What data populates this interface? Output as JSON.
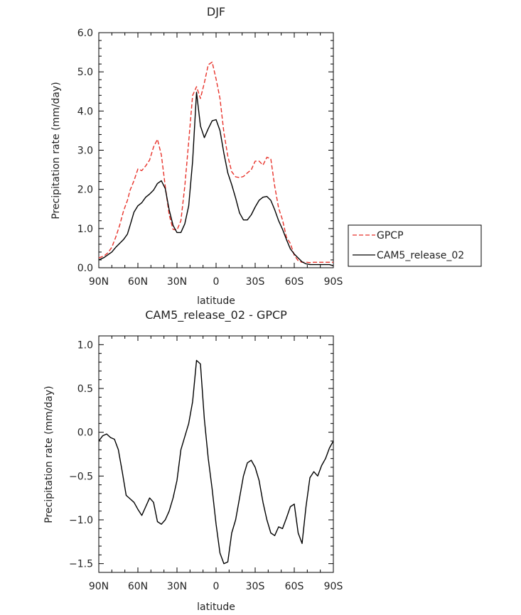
{
  "chart_data": [
    {
      "type": "line",
      "title": "DJF",
      "xlabel": "latitude",
      "ylabel": "Precipitation rate (mm/day)",
      "xlim": [
        90,
        -90
      ],
      "ylim": [
        0.0,
        6.0
      ],
      "xticks": [
        90,
        60,
        30,
        0,
        -30,
        -60,
        -90
      ],
      "xtick_labels": [
        "90N",
        "60N",
        "30N",
        "0",
        "30S",
        "60S",
        "90S"
      ],
      "yticks": [
        0.0,
        1.0,
        2.0,
        3.0,
        4.0,
        5.0,
        6.0
      ],
      "ytick_labels": [
        "0.0",
        "1.0",
        "2.0",
        "3.0",
        "4.0",
        "5.0",
        "6.0"
      ],
      "legend": {
        "placement": "right",
        "entries": [
          "GPCP",
          "CAM5_release_02"
        ]
      },
      "x": [
        90,
        86,
        83,
        80,
        77,
        74,
        71,
        68,
        66,
        63,
        60,
        57,
        54,
        51,
        48,
        45,
        42,
        39,
        36,
        33,
        30,
        27,
        24,
        21,
        18,
        15,
        12,
        9,
        6,
        3,
        0,
        -3,
        -6,
        -9,
        -12,
        -15,
        -18,
        -21,
        -24,
        -27,
        -30,
        -33,
        -36,
        -39,
        -42,
        -45,
        -48,
        -51,
        -54,
        -57,
        -60,
        -63,
        -66,
        -69,
        -72,
        -75,
        -78,
        -81,
        -84,
        -87,
        -90
      ],
      "series": [
        {
          "name": "GPCP",
          "color": "#e8322a",
          "dash": "dashed",
          "values": [
            0.25,
            0.3,
            0.38,
            0.52,
            0.78,
            1.08,
            1.45,
            1.72,
            1.98,
            2.22,
            2.52,
            2.48,
            2.6,
            2.75,
            3.08,
            3.28,
            2.88,
            2.08,
            1.35,
            0.98,
            0.96,
            1.2,
            2.08,
            3.22,
            4.4,
            4.62,
            4.32,
            4.72,
            5.18,
            5.25,
            4.82,
            4.32,
            3.45,
            2.85,
            2.45,
            2.32,
            2.3,
            2.33,
            2.42,
            2.5,
            2.72,
            2.72,
            2.62,
            2.82,
            2.78,
            2.08,
            1.52,
            1.22,
            0.78,
            0.62,
            0.32,
            0.18,
            0.14,
            0.14,
            0.13,
            0.14,
            0.14,
            0.14,
            0.14,
            0.14,
            0.14
          ]
        },
        {
          "name": "CAM5_release_02",
          "color": "#000000",
          "dash": "solid",
          "values": [
            0.2,
            0.26,
            0.33,
            0.4,
            0.52,
            0.62,
            0.72,
            0.86,
            1.08,
            1.42,
            1.58,
            1.66,
            1.8,
            1.88,
            1.98,
            2.15,
            2.22,
            2.02,
            1.48,
            1.08,
            0.9,
            0.9,
            1.12,
            1.58,
            2.72,
            4.48,
            3.62,
            3.32,
            3.55,
            3.75,
            3.78,
            3.5,
            2.92,
            2.42,
            2.12,
            1.78,
            1.4,
            1.22,
            1.22,
            1.35,
            1.55,
            1.72,
            1.8,
            1.82,
            1.72,
            1.48,
            1.2,
            0.98,
            0.72,
            0.48,
            0.35,
            0.25,
            0.15,
            0.1,
            0.08,
            0.08,
            0.08,
            0.08,
            0.08,
            0.08,
            0.05
          ]
        }
      ]
    },
    {
      "type": "line",
      "title": "CAM5_release_02 - GPCP",
      "xlabel": "latitude",
      "ylabel": "Precipitation rate (mm/day)",
      "xlim": [
        90,
        -90
      ],
      "ylim": [
        -1.6,
        1.1
      ],
      "xticks": [
        90,
        60,
        30,
        0,
        -30,
        -60,
        -90
      ],
      "xtick_labels": [
        "90N",
        "60N",
        "30N",
        "0",
        "30S",
        "60S",
        "90S"
      ],
      "yticks": [
        1.0,
        0.5,
        0.0,
        -0.5,
        -1.0,
        -1.5
      ],
      "ytick_labels": [
        "1.0",
        "0.5",
        "0.0",
        "−0.5",
        "−1.0",
        "−1.5"
      ],
      "x": [
        90,
        87,
        84,
        81,
        78,
        75,
        72,
        69,
        66,
        63,
        60,
        57,
        54,
        51,
        48,
        45,
        42,
        39,
        36,
        33,
        30,
        27,
        24,
        21,
        18,
        15,
        12,
        9,
        6,
        3,
        0,
        -3,
        -6,
        -9,
        -12,
        -15,
        -18,
        -21,
        -24,
        -27,
        -30,
        -33,
        -36,
        -39,
        -42,
        -45,
        -48,
        -51,
        -54,
        -57,
        -60,
        -63,
        -66,
        -69,
        -72,
        -75,
        -78,
        -81,
        -84,
        -87,
        -90
      ],
      "series": [
        {
          "name": "CAM5_release_02 - GPCP",
          "color": "#000000",
          "dash": "solid",
          "values": [
            -0.1,
            -0.04,
            -0.02,
            -0.06,
            -0.08,
            -0.2,
            -0.45,
            -0.72,
            -0.76,
            -0.8,
            -0.88,
            -0.95,
            -0.85,
            -0.75,
            -0.8,
            -1.02,
            -1.05,
            -1.0,
            -0.9,
            -0.75,
            -0.55,
            -0.2,
            -0.05,
            0.1,
            0.35,
            0.82,
            0.78,
            0.15,
            -0.3,
            -0.65,
            -1.05,
            -1.38,
            -1.5,
            -1.48,
            -1.15,
            -1.0,
            -0.75,
            -0.5,
            -0.35,
            -0.32,
            -0.4,
            -0.55,
            -0.8,
            -1.0,
            -1.15,
            -1.18,
            -1.08,
            -1.1,
            -0.98,
            -0.85,
            -0.82,
            -1.15,
            -1.27,
            -0.85,
            -0.52,
            -0.45,
            -0.5,
            -0.38,
            -0.3,
            -0.18,
            -0.1
          ]
        }
      ]
    }
  ]
}
